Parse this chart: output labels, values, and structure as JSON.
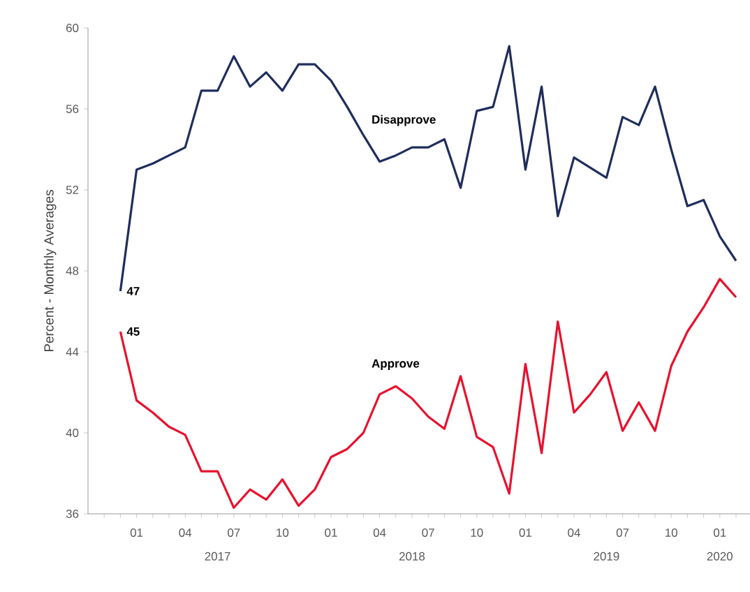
{
  "chart_data": {
    "type": "line",
    "ylabel": "Percent - Monthly Averages",
    "x": [
      "2016-12",
      "2017-01",
      "2017-02",
      "2017-03",
      "2017-04",
      "2017-05",
      "2017-06",
      "2017-07",
      "2017-08",
      "2017-09",
      "2017-10",
      "2017-11",
      "2017-12",
      "2018-01",
      "2018-02",
      "2018-03",
      "2018-04",
      "2018-05",
      "2018-06",
      "2018-07",
      "2018-08",
      "2018-09",
      "2018-10",
      "2018-11",
      "2018-12",
      "2019-01",
      "2019-02",
      "2019-03",
      "2019-04",
      "2019-05",
      "2019-06",
      "2019-07",
      "2019-08",
      "2019-09",
      "2019-10",
      "2019-11",
      "2019-12",
      "2020-01",
      "2020-02"
    ],
    "series": [
      {
        "name": "Disapprove",
        "color": "#1f2d5c",
        "values": [
          47.0,
          53.0,
          53.3,
          53.7,
          54.1,
          56.9,
          56.9,
          58.6,
          57.1,
          57.8,
          56.9,
          58.2,
          58.2,
          57.4,
          56.1,
          54.7,
          53.4,
          53.7,
          54.1,
          54.1,
          54.5,
          52.1,
          55.9,
          56.1,
          59.1,
          53.0,
          57.1,
          50.7,
          53.6,
          53.1,
          52.6,
          55.6,
          55.2,
          57.1,
          54.0,
          51.2,
          51.5,
          49.7,
          48.5
        ],
        "value_labels": [
          "47",
          null,
          null,
          null,
          null,
          null,
          null,
          null,
          null,
          null,
          null,
          null,
          null,
          null,
          null,
          null,
          null,
          null,
          null,
          null,
          null,
          null,
          null,
          null,
          null,
          null,
          null,
          null,
          null,
          null,
          null,
          null,
          null,
          null,
          null,
          null,
          null,
          null,
          null
        ]
      },
      {
        "name": "Approve",
        "color": "#e8112d",
        "values": [
          45.0,
          41.6,
          41.0,
          40.3,
          39.9,
          38.1,
          38.1,
          36.3,
          37.2,
          36.7,
          37.7,
          36.4,
          37.2,
          38.8,
          39.2,
          40.0,
          41.9,
          42.3,
          41.7,
          40.8,
          40.2,
          42.8,
          39.8,
          39.3,
          37.0,
          43.4,
          39.0,
          45.5,
          41.0,
          41.9,
          43.0,
          40.1,
          41.5,
          40.1,
          43.3,
          45.0,
          46.2,
          47.6,
          46.7
        ],
        "value_labels": [
          "45",
          null,
          null,
          null,
          null,
          null,
          null,
          null,
          null,
          null,
          null,
          null,
          null,
          null,
          null,
          null,
          null,
          null,
          null,
          null,
          null,
          null,
          null,
          null,
          null,
          null,
          null,
          null,
          null,
          null,
          null,
          null,
          null,
          null,
          null,
          null,
          null,
          null,
          null
        ]
      }
    ],
    "xlim": [
      "2016-10",
      "2020-03"
    ],
    "xticks": [
      {
        "value": "2016-11",
        "label": null
      },
      {
        "value": "2016-12",
        "label": null
      },
      {
        "value": "2017-01",
        "label": "01"
      },
      {
        "value": "2017-02",
        "label": null
      },
      {
        "value": "2017-03",
        "label": null
      },
      {
        "value": "2017-04",
        "label": "04"
      },
      {
        "value": "2017-05",
        "label": null
      },
      {
        "value": "2017-06",
        "label": null
      },
      {
        "value": "2017-07",
        "label": "07"
      },
      {
        "value": "2017-08",
        "label": null
      },
      {
        "value": "2017-09",
        "label": null
      },
      {
        "value": "2017-10",
        "label": "10"
      },
      {
        "value": "2017-11",
        "label": null
      },
      {
        "value": "2017-12",
        "label": null
      },
      {
        "value": "2018-01",
        "label": "01"
      },
      {
        "value": "2018-02",
        "label": null
      },
      {
        "value": "2018-03",
        "label": null
      },
      {
        "value": "2018-04",
        "label": "04"
      },
      {
        "value": "2018-05",
        "label": null
      },
      {
        "value": "2018-06",
        "label": null
      },
      {
        "value": "2018-07",
        "label": "07"
      },
      {
        "value": "2018-08",
        "label": null
      },
      {
        "value": "2018-09",
        "label": null
      },
      {
        "value": "2018-10",
        "label": "10"
      },
      {
        "value": "2018-11",
        "label": null
      },
      {
        "value": "2018-12",
        "label": null
      },
      {
        "value": "2019-01",
        "label": "01"
      },
      {
        "value": "2019-02",
        "label": null
      },
      {
        "value": "2019-03",
        "label": null
      },
      {
        "value": "2019-04",
        "label": "04"
      },
      {
        "value": "2019-05",
        "label": null
      },
      {
        "value": "2019-06",
        "label": null
      },
      {
        "value": "2019-07",
        "label": "07"
      },
      {
        "value": "2019-08",
        "label": null
      },
      {
        "value": "2019-09",
        "label": null
      },
      {
        "value": "2019-10",
        "label": "10"
      },
      {
        "value": "2019-11",
        "label": null
      },
      {
        "value": "2019-12",
        "label": null
      },
      {
        "value": "2020-01",
        "label": "01"
      },
      {
        "value": "2020-02",
        "label": null
      }
    ],
    "ylim": [
      36,
      60
    ],
    "yticks": [
      36,
      40,
      44,
      48,
      52,
      56,
      60
    ],
    "annotations": [
      "2017",
      "2018",
      "2019",
      "2020"
    ],
    "grid": false,
    "legend": false,
    "marker": "none",
    "line_style": "solid"
  }
}
